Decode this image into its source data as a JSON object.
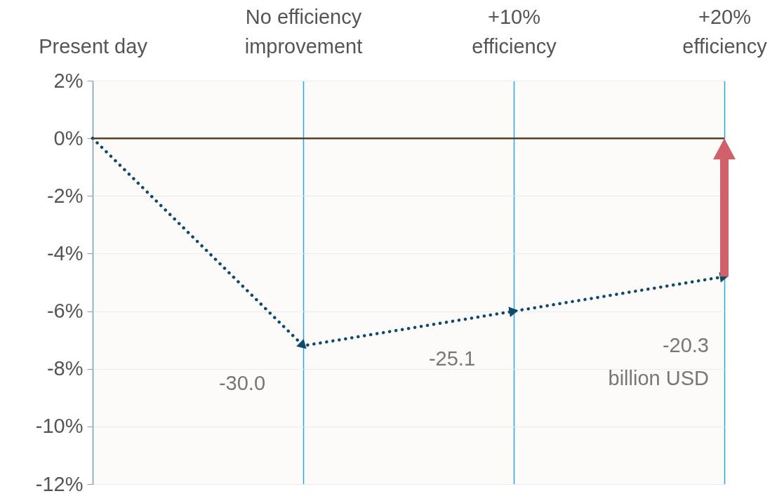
{
  "chart_data": {
    "type": "line",
    "categories": [
      "Present day",
      "No efficiency improvement",
      "+10% efficiency",
      "+20% efficiency"
    ],
    "series": [
      {
        "color": "#0e4a6b",
        "values": [
          0,
          -7.2,
          -6.0,
          -4.8
        ]
      }
    ],
    "ylim": [
      -12,
      2
    ],
    "yticks": [
      {
        "value": 2,
        "label": "2%"
      },
      {
        "value": 0,
        "label": "0%"
      },
      {
        "value": -2,
        "label": "-2%"
      },
      {
        "value": -4,
        "label": "-4%"
      },
      {
        "value": -6,
        "label": "-6%"
      },
      {
        "value": -8,
        "label": "-8%"
      },
      {
        "value": -10,
        "label": "-10%"
      },
      {
        "value": -12,
        "label": "-12%"
      }
    ],
    "grid": true,
    "marker": "triangle",
    "line_style": "dotted",
    "ref_lines": [
      {
        "axis": "y",
        "value": 0,
        "color": "#5a3f1e"
      }
    ],
    "annotations": [
      "-30.0",
      "-25.1",
      "-20.3 billion USD"
    ]
  }
}
